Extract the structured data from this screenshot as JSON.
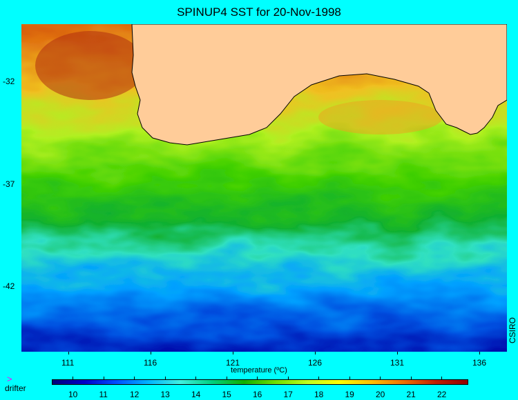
{
  "title": "SPINUP4 SST for 20-Nov-1998",
  "y_axis": {
    "ticks": [
      "-32",
      "-37",
      "-42"
    ]
  },
  "x_axis": {
    "ticks": [
      "111",
      "116",
      "121",
      "126",
      "131",
      "136"
    ]
  },
  "credit": "CSIRO",
  "colorbar": {
    "title": "temperature (ºC)",
    "labels": [
      "10",
      "11",
      "12",
      "13",
      "14",
      "15",
      "16",
      "17",
      "18",
      "19",
      "20",
      "21",
      "22"
    ],
    "colors": [
      "#00007a",
      "#0000c8",
      "#0050ff",
      "#00b4ff",
      "#40f0e0",
      "#00d080",
      "#10b000",
      "#70e000",
      "#c0ff20",
      "#ffff00",
      "#ffc000",
      "#f07000",
      "#c02000",
      "#900000"
    ]
  },
  "legend": {
    "symbol": ">",
    "label": "drifter"
  },
  "colors": {
    "background": "#00ffff",
    "land": "#ffcc99",
    "marker": "#ff00ff"
  }
}
